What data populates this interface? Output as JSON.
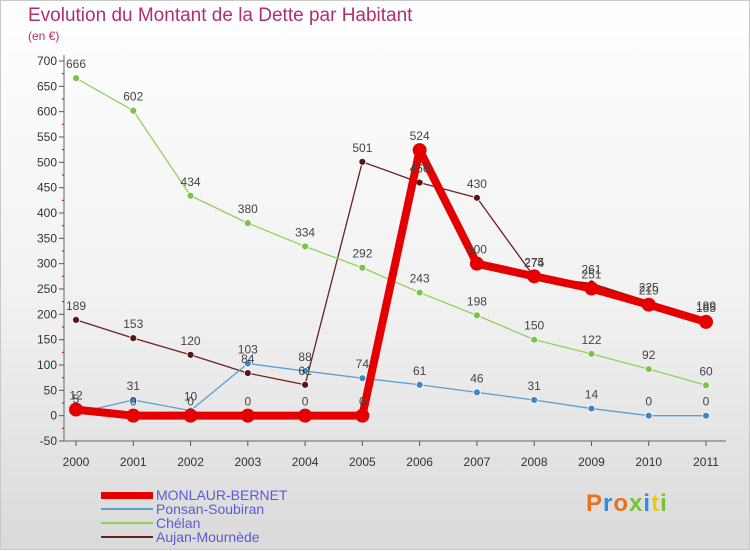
{
  "title": "Evolution du Montant de la Dette par Habitant",
  "subtitle": "(en €)",
  "brand": "Proxiti",
  "brand_colors": [
    "#e8731a",
    "#2e8de0",
    "#e8731a",
    "#7cbf3a",
    "#2e8de0",
    "#e8c81a",
    "#7cbf3a"
  ],
  "chart_data": {
    "type": "line",
    "x": [
      "2000",
      "2001",
      "2002",
      "2003",
      "2004",
      "2005",
      "2006",
      "2007",
      "2008",
      "2009",
      "2010",
      "2011"
    ],
    "ylim": [
      -50,
      700
    ],
    "yticks": [
      -50,
      0,
      50,
      100,
      150,
      200,
      250,
      300,
      350,
      400,
      450,
      500,
      550,
      600,
      650,
      700
    ],
    "grid": false,
    "legend_position": "bottom-left",
    "series": [
      {
        "name": "MONLAUR-BERNET",
        "color": "#e40000",
        "values": [
          12,
          0,
          0,
          0,
          0,
          0,
          524,
          300,
          275,
          251,
          219,
          185
        ]
      },
      {
        "name": "Ponsan-Soubiran",
        "color": "#5a9fd4",
        "values": [
          5,
          31,
          10,
          103,
          88,
          74,
          61,
          46,
          31,
          14,
          0,
          0
        ]
      },
      {
        "name": "Chélan",
        "color": "#8fd25b",
        "values": [
          666,
          602,
          434,
          380,
          334,
          292,
          243,
          198,
          150,
          122,
          92,
          60
        ]
      },
      {
        "name": "Aujan-Mournède",
        "color": "#6e2020",
        "values": [
          189,
          153,
          120,
          84,
          61,
          501,
          460,
          430,
          274,
          261,
          225,
          189
        ]
      }
    ]
  }
}
